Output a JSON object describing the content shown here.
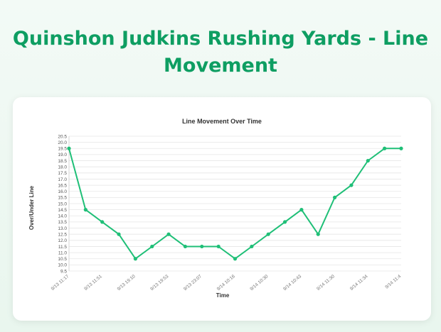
{
  "page": {
    "title": "Quinshon Judkins Rushing Yards - Line Movement"
  },
  "colors": {
    "accent": "#0e9e62",
    "line": "#1fbf77"
  },
  "chart_data": {
    "type": "line",
    "title": "Line Movement Over Time",
    "xlabel": "Time",
    "ylabel": "Over/Under Line",
    "ylim": [
      9.5,
      20.5
    ],
    "y_tick_step": 0.5,
    "grid": true,
    "x_tick_labels": [
      "9/13 11:17",
      "9/13 11:51",
      "9/13 19:10",
      "9/13 19:53",
      "9/13 23:07",
      "9/14 10:16",
      "9/14 10:30",
      "9/14 10:43",
      "9/14 11:30",
      "9/14 11:34",
      "9/14 11:4"
    ],
    "series": [
      {
        "values": [
          19.5,
          14.5,
          13.5,
          12.5,
          10.5,
          11.5,
          12.5,
          11.5,
          11.5,
          11.5,
          10.5,
          11.5,
          12.5,
          13.5,
          14.5,
          12.5,
          15.5,
          16.5,
          18.5,
          19.5,
          19.5
        ]
      }
    ]
  }
}
